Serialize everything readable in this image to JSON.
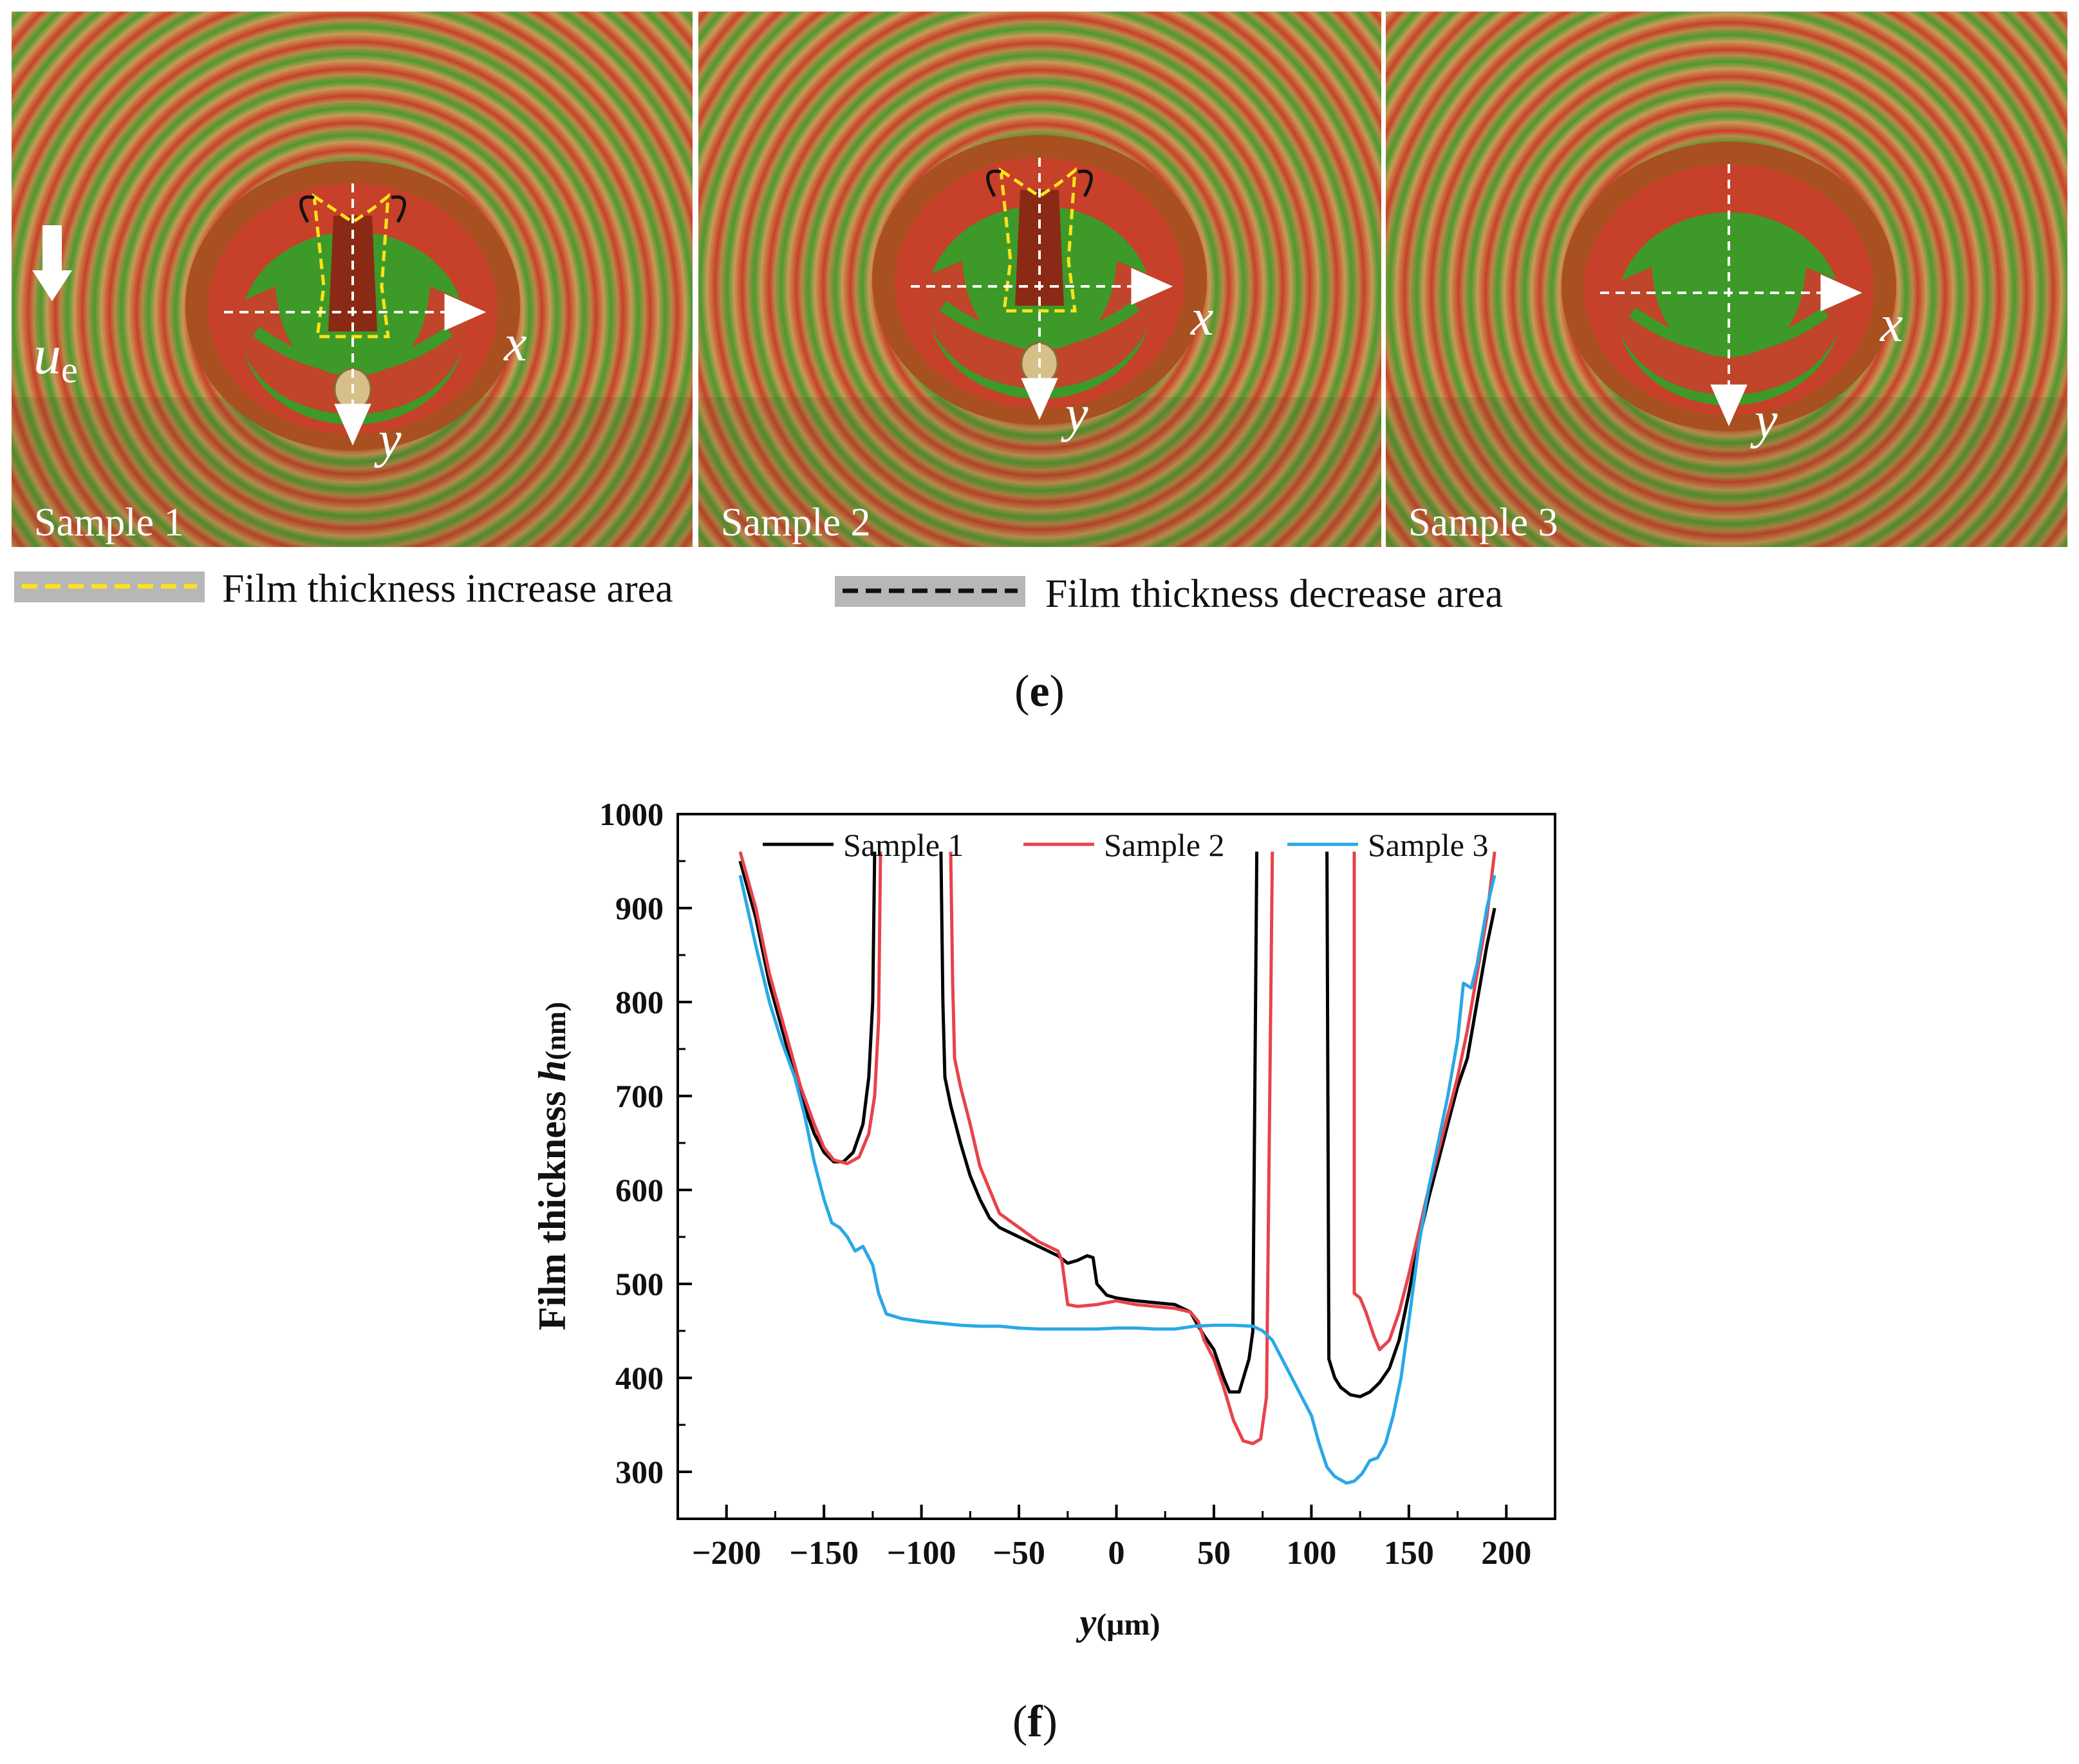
{
  "panel_e": {
    "label_open": "(",
    "label_letter": "e",
    "label_close": ")",
    "direction_symbol": "u",
    "direction_subscript": "e",
    "samples": [
      {
        "caption": "Sample 1",
        "x_axis": "x",
        "y_axis": "y",
        "contact_variant": "dimple"
      },
      {
        "caption": "Sample 2",
        "x_axis": "x",
        "y_axis": "y",
        "contact_variant": "dimple"
      },
      {
        "caption": "Sample 3",
        "x_axis": "x",
        "y_axis": "y",
        "contact_variant": "plain"
      }
    ],
    "legend": {
      "increase_label": "Film thickness increase area",
      "decrease_label": "Film thickness decrease area"
    },
    "colors": {
      "fringe_red": "#c23a1c",
      "fringe_green": "#3d9a28",
      "fringe_tan": "#b98a4a",
      "increase_line": "#ffe21a",
      "decrease_line": "#111111"
    }
  },
  "panel_f": {
    "label_open": "(",
    "label_letter": "f",
    "label_close": ")"
  },
  "chart_data": {
    "type": "line",
    "title": "",
    "xlabel_symbol": "y",
    "xlabel_unit": "(μm)",
    "ylabel_text": "Film thickness ",
    "ylabel_symbol": "h",
    "ylabel_unit": "(nm)",
    "xlim": [
      -225,
      225
    ],
    "ylim": [
      250,
      1000
    ],
    "xticks": [
      -200,
      -150,
      -100,
      -50,
      0,
      50,
      100,
      150,
      200
    ],
    "xtick_labels": [
      "−200",
      "−150",
      "−100",
      "−50",
      "0",
      "50",
      "100",
      "150",
      "200"
    ],
    "yticks": [
      300,
      400,
      500,
      600,
      700,
      800,
      900,
      1000
    ],
    "ytick_labels": [
      "300",
      "400",
      "500",
      "600",
      "700",
      "800",
      "900",
      "1000"
    ],
    "legend_position": "top",
    "series": [
      {
        "name": "Sample 1",
        "color": "#000000",
        "segments": [
          [
            [
              -193,
              950
            ],
            [
              -185,
              890
            ],
            [
              -178,
              820
            ],
            [
              -170,
              760
            ],
            [
              -162,
              700
            ],
            [
              -155,
              660
            ],
            [
              -150,
              640
            ],
            [
              -145,
              630
            ],
            [
              -140,
              630
            ],
            [
              -135,
              640
            ],
            [
              -130,
              670
            ],
            [
              -127,
              720
            ],
            [
              -125,
              800
            ],
            [
              -124,
              960
            ]
          ],
          [
            [
              -90,
              960
            ],
            [
              -89,
              800
            ],
            [
              -88,
              720
            ],
            [
              -85,
              690
            ],
            [
              -80,
              650
            ],
            [
              -75,
              615
            ],
            [
              -70,
              590
            ],
            [
              -65,
              570
            ],
            [
              -60,
              560
            ],
            [
              -50,
              550
            ],
            [
              -40,
              540
            ],
            [
              -30,
              530
            ],
            [
              -25,
              522
            ],
            [
              -20,
              525
            ],
            [
              -15,
              530
            ],
            [
              -12,
              528
            ],
            [
              -10,
              500
            ],
            [
              -5,
              488
            ],
            [
              0,
              485
            ],
            [
              10,
              482
            ],
            [
              20,
              480
            ],
            [
              30,
              478
            ],
            [
              38,
              470
            ],
            [
              42,
              455
            ],
            [
              45,
              445
            ],
            [
              50,
              430
            ],
            [
              55,
              400
            ],
            [
              58,
              385
            ],
            [
              63,
              385
            ],
            [
              68,
              420
            ],
            [
              70,
              450
            ],
            [
              72,
              960
            ]
          ],
          [
            [
              108,
              960
            ],
            [
              109,
              420
            ],
            [
              112,
              400
            ],
            [
              115,
              390
            ],
            [
              120,
              382
            ],
            [
              125,
              380
            ],
            [
              130,
              385
            ],
            [
              135,
              395
            ],
            [
              140,
              410
            ],
            [
              145,
              440
            ],
            [
              150,
              490
            ],
            [
              155,
              545
            ],
            [
              160,
              590
            ],
            [
              165,
              630
            ],
            [
              170,
              670
            ],
            [
              175,
              710
            ],
            [
              180,
              740
            ],
            [
              185,
              800
            ],
            [
              190,
              860
            ],
            [
              194,
              900
            ]
          ]
        ]
      },
      {
        "name": "Sample 2",
        "color": "#e8434a",
        "segments": [
          [
            [
              -193,
              960
            ],
            [
              -185,
              900
            ],
            [
              -178,
              830
            ],
            [
              -170,
              770
            ],
            [
              -162,
              710
            ],
            [
              -155,
              670
            ],
            [
              -150,
              645
            ],
            [
              -145,
              632
            ],
            [
              -138,
              628
            ],
            [
              -132,
              635
            ],
            [
              -127,
              660
            ],
            [
              -124,
              700
            ],
            [
              -122,
              780
            ],
            [
              -121,
              960
            ]
          ],
          [
            [
              -85,
              960
            ],
            [
              -84,
              820
            ],
            [
              -83,
              740
            ],
            [
              -80,
              710
            ],
            [
              -75,
              670
            ],
            [
              -70,
              625
            ],
            [
              -65,
              600
            ],
            [
              -60,
              575
            ],
            [
              -50,
              560
            ],
            [
              -40,
              545
            ],
            [
              -30,
              535
            ],
            [
              -28,
              525
            ],
            [
              -25,
              478
            ],
            [
              -20,
              476
            ],
            [
              -10,
              478
            ],
            [
              0,
              482
            ],
            [
              10,
              478
            ],
            [
              20,
              476
            ],
            [
              30,
              474
            ],
            [
              38,
              470
            ],
            [
              42,
              460
            ],
            [
              45,
              440
            ],
            [
              50,
              420
            ],
            [
              55,
              390
            ],
            [
              60,
              355
            ],
            [
              65,
              333
            ],
            [
              70,
              330
            ],
            [
              74,
              335
            ],
            [
              77,
              380
            ],
            [
              80,
              960
            ]
          ],
          [
            [
              122,
              960
            ],
            [
              122,
              490
            ],
            [
              125,
              485
            ],
            [
              128,
              470
            ],
            [
              132,
              445
            ],
            [
              135,
              430
            ],
            [
              140,
              440
            ],
            [
              145,
              470
            ],
            [
              150,
              510
            ],
            [
              155,
              555
            ],
            [
              160,
              600
            ],
            [
              165,
              640
            ],
            [
              170,
              680
            ],
            [
              175,
              720
            ],
            [
              180,
              770
            ],
            [
              185,
              830
            ],
            [
              190,
              890
            ],
            [
              194,
              960
            ]
          ]
        ]
      },
      {
        "name": "Sample 3",
        "color": "#2aa8e6",
        "segments": [
          [
            [
              -193,
              935
            ],
            [
              -185,
              860
            ],
            [
              -178,
              800
            ],
            [
              -172,
              760
            ],
            [
              -165,
              720
            ],
            [
              -160,
              680
            ],
            [
              -155,
              630
            ],
            [
              -150,
              590
            ],
            [
              -146,
              565
            ],
            [
              -142,
              560
            ],
            [
              -138,
              550
            ],
            [
              -134,
              535
            ],
            [
              -130,
              540
            ],
            [
              -125,
              520
            ],
            [
              -122,
              490
            ],
            [
              -118,
              468
            ],
            [
              -110,
              463
            ],
            [
              -100,
              460
            ],
            [
              -90,
              458
            ],
            [
              -80,
              456
            ],
            [
              -70,
              455
            ],
            [
              -60,
              455
            ],
            [
              -50,
              453
            ],
            [
              -40,
              452
            ],
            [
              -30,
              452
            ],
            [
              -20,
              452
            ],
            [
              -10,
              452
            ],
            [
              0,
              453
            ],
            [
              10,
              453
            ],
            [
              20,
              452
            ],
            [
              30,
              452
            ],
            [
              40,
              455
            ],
            [
              50,
              456
            ],
            [
              60,
              456
            ],
            [
              70,
              455
            ],
            [
              75,
              450
            ],
            [
              80,
              440
            ],
            [
              85,
              420
            ],
            [
              90,
              400
            ],
            [
              95,
              380
            ],
            [
              100,
              360
            ],
            [
              104,
              330
            ],
            [
              108,
              305
            ],
            [
              112,
              295
            ],
            [
              118,
              288
            ],
            [
              122,
              290
            ],
            [
              126,
              298
            ],
            [
              130,
              312
            ],
            [
              134,
              315
            ],
            [
              138,
              330
            ],
            [
              142,
              360
            ],
            [
              146,
              400
            ],
            [
              150,
              460
            ],
            [
              155,
              540
            ],
            [
              160,
              600
            ],
            [
              165,
              650
            ],
            [
              170,
              700
            ],
            [
              175,
              760
            ],
            [
              178,
              820
            ],
            [
              182,
              815
            ],
            [
              185,
              840
            ],
            [
              190,
              900
            ],
            [
              194,
              935
            ]
          ]
        ]
      }
    ]
  }
}
